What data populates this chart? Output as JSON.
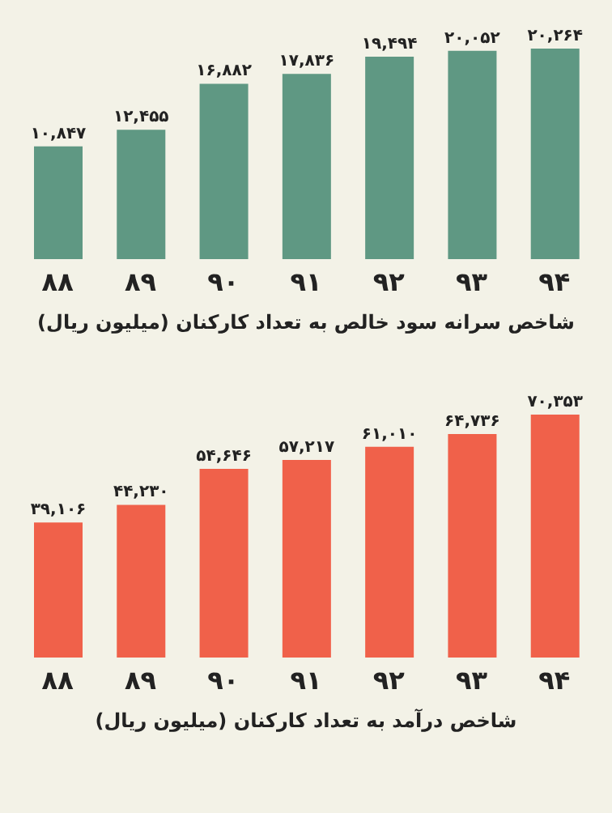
{
  "chart_data": [
    {
      "type": "bar",
      "title": "شاخص سرانه سود خالص به تعداد کارکنان (میلیون ریال)",
      "categories": [
        "۸۸",
        "۸۹",
        "۹۰",
        "۹۱",
        "۹۲",
        "۹۳",
        "۹۴"
      ],
      "values": [
        10847,
        12455,
        16882,
        17836,
        19494,
        20052,
        20264
      ],
      "value_labels": [
        "۱۰,۸۴۷",
        "۱۲,۴۵۵",
        "۱۶,۸۸۲",
        "۱۷,۸۳۶",
        "۱۹,۴۹۴",
        "۲۰,۰۵۲",
        "۲۰,۲۶۴"
      ],
      "color": "#5f9883"
    },
    {
      "type": "bar",
      "title": "شاخص درآمد به تعداد کارکنان (میلیون ریال)",
      "categories": [
        "۸۸",
        "۸۹",
        "۹۰",
        "۹۱",
        "۹۲",
        "۹۳",
        "۹۴"
      ],
      "values": [
        39106,
        44230,
        54646,
        57217,
        61010,
        64736,
        70353
      ],
      "value_labels": [
        "۳۹,۱۰۶",
        "۴۴,۲۳۰",
        "۵۴,۶۴۶",
        "۵۷,۲۱۷",
        "۶۱,۰۱۰",
        "۶۴,۷۳۶",
        "۷۰,۳۵۳"
      ],
      "color": "#f0614a"
    }
  ]
}
